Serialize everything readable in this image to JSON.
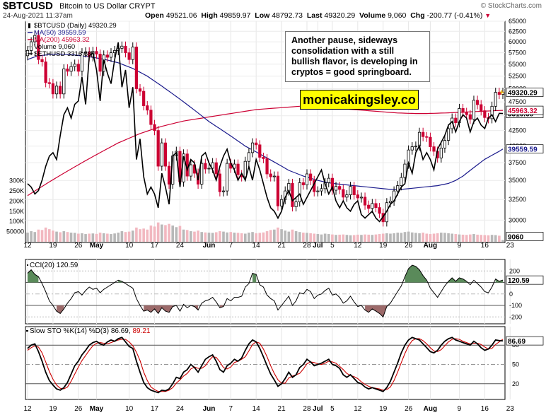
{
  "header": {
    "symbol": "$BTCUSD",
    "name": "Bitcoin to US Dollar",
    "exchange": "CRYPT",
    "date": "24-Aug-2021 11:37am",
    "open_label": "Open",
    "open": "49521.06",
    "high_label": "High",
    "high": "49859.97",
    "low_label": "Low",
    "low": "48792.73",
    "last_label": "Last",
    "last": "49320.29",
    "volume_label": "Volume",
    "volume": "9,060",
    "chg_label": "Chg",
    "chg": "-200.77 (-0.41%)",
    "chg_arrow": "▼",
    "source": "© StockCharts.com"
  },
  "annotation": "Another pause, sideways consolidation with a still bullish flavor, is developing in cryptos = good springboard.",
  "brand": "monicakingsley.co",
  "colors": {
    "up": "#000000",
    "down": "#cc0033",
    "ma50": "#1a1a8c",
    "ma200": "#cc0033",
    "eth": "#000000",
    "vol_up": "#b8b8b8",
    "vol_down": "#f2b8c0",
    "cci_pos": "#5a8a5a",
    "cci_neg": "#9c6a6a",
    "stoch_k": "#000000",
    "stoch_d": "#cc0000"
  },
  "chart_data": {
    "type": "candlestick",
    "title": "$BTCUSD (Daily) 49320.29",
    "legend": [
      {
        "label": "$BTCUSD (Daily) 49320.29",
        "swatch": "candle"
      },
      {
        "label": "MA(50) 39559.59",
        "color": "#1a1a8c"
      },
      {
        "label": "MA(200) 45963.32",
        "color": "#cc0033"
      },
      {
        "label": "Volume 9,060",
        "color": "#999999"
      },
      {
        "label": "$ETHUSD 3316.68",
        "color": "#000000"
      }
    ],
    "x_labels": [
      "12",
      "19",
      "26",
      "May",
      "10",
      "17",
      "24",
      "Jun",
      "7",
      "14",
      "21",
      "28",
      "Jul",
      "5",
      "12",
      "19",
      "26",
      "Aug",
      "9",
      "16",
      "23"
    ],
    "x_label_day_index": [
      0,
      7,
      14,
      19,
      28,
      35,
      42,
      50,
      56,
      63,
      70,
      77,
      80,
      84,
      91,
      98,
      105,
      111,
      119,
      126,
      133
    ],
    "bold_x_labels": [
      "May",
      "Jun",
      "Jul",
      "Aug"
    ],
    "price_axis": {
      "min": 27500,
      "max": 65000,
      "scale": "log",
      "ticks": [
        "65000",
        "62500",
        "60000",
        "57500",
        "55000",
        "52500",
        "50000",
        "47500",
        "45000",
        "42500",
        "40000",
        "37500",
        "35000",
        "32500",
        "30000"
      ],
      "tick_values": [
        65000,
        62500,
        60000,
        57500,
        55000,
        52500,
        50000,
        47500,
        45000,
        42500,
        40000,
        37500,
        35000,
        32500,
        30000
      ]
    },
    "btc_close": [
      58000,
      60000,
      61500,
      56000,
      55500,
      51200,
      51000,
      49000,
      50500,
      49000,
      54000,
      53500,
      54500,
      55000,
      53500,
      57500,
      57700,
      56600,
      57800,
      57200,
      53500,
      57000,
      56500,
      57500,
      58000,
      58500,
      59000,
      57500,
      56000,
      58800,
      50000,
      49500,
      46800,
      46000,
      43500,
      42500,
      37000,
      40500,
      37000,
      34500,
      38500,
      39200,
      34800,
      38800,
      35600,
      37200,
      36000,
      34500,
      37400,
      36600,
      36700,
      37500,
      35900,
      33500,
      33600,
      37400,
      36700,
      37300,
      35800,
      35500,
      37700,
      39000,
      40500,
      40200,
      38300,
      38100,
      35900,
      35500,
      35600,
      31700,
      32500,
      33600,
      34600,
      31600,
      32200,
      34700,
      34400,
      35900,
      35000,
      33500,
      33600,
      33900,
      34700,
      35300,
      33700,
      34200,
      33800,
      32800,
      33100,
      34200,
      33100,
      32700,
      32800,
      31800,
      31400,
      32000,
      31500,
      30800,
      29800,
      32100,
      32300,
      33600,
      34300,
      35400,
      37300,
      39400,
      39900,
      40000,
      42200,
      41500,
      41400,
      39900,
      39200,
      38200,
      39700,
      40900,
      42800,
      44600,
      43800,
      46300,
      45600,
      45200,
      44400,
      47800,
      47000,
      45900,
      44700,
      44500,
      46700,
      49300,
      48900,
      49300
    ],
    "btc_ohlc_note": "candles drawn from btc_close with open = previous close",
    "eth_usd": {
      "label": "$ETHUSD",
      "last": "3316.68",
      "min": 1600,
      "max": 4400,
      "values": [
        2300,
        2250,
        2150,
        2200,
        2350,
        2550,
        2700,
        2750,
        2650,
        3000,
        3300,
        3400,
        3250,
        3450,
        3500,
        3850,
        3450,
        4150,
        4200,
        3950,
        3500,
        4100,
        3900,
        3750,
        4100,
        4350,
        3700,
        3950,
        3400,
        3700,
        2650,
        2950,
        2400,
        2150,
        2250,
        2150,
        1950,
        2450,
        2250,
        2000,
        2700,
        2750,
        2250,
        2700,
        2500,
        2650,
        2600,
        2350,
        2700,
        2750,
        2600,
        2500,
        2350,
        2550,
        2700,
        2800,
        2600,
        2500,
        2350,
        2450,
        2350,
        2550,
        2350,
        2650,
        2500,
        2300,
        2100,
        1950,
        1900,
        1800,
        1900,
        2100,
        2200,
        2050,
        2100,
        2150,
        2000,
        2100,
        2200,
        2300,
        2400,
        2500,
        2300,
        2150,
        2250,
        2050,
        1950,
        2050,
        1950,
        1900,
        2000,
        2050,
        1850,
        1800,
        1850,
        1900,
        1800,
        1750,
        1820,
        1900,
        2000,
        2050,
        2150,
        2250,
        2300,
        2600,
        2450,
        2750,
        2850,
        2650,
        2750,
        2650,
        2500,
        2800,
        2900,
        3000,
        3150,
        3200,
        3050,
        3200,
        3300,
        3250,
        3050,
        3200,
        3250,
        3150,
        3100,
        3250,
        3300,
        3200,
        3320,
        3317
      ]
    },
    "ma50": {
      "label": "MA(50)",
      "last": "39559.59",
      "values": [
        56000,
        56300,
        56600,
        56800,
        56900,
        57000,
        57100,
        57150,
        57200,
        57200,
        57150,
        57100,
        57050,
        57000,
        56900,
        56800,
        56700,
        56600,
        56500,
        56350,
        56200,
        56050,
        55900,
        55700,
        55500,
        55300,
        55000,
        54700,
        54400,
        54100,
        53700,
        53300,
        52900,
        52500,
        52000,
        51500,
        51000,
        50500,
        50000,
        49500,
        49000,
        48500,
        48000,
        47500,
        47000,
        46500,
        46000,
        45500,
        45000,
        44500,
        44000,
        43600,
        43200,
        42800,
        42400,
        42000,
        41600,
        41200,
        40800,
        40400,
        40000,
        39700,
        39400,
        39100,
        38800,
        38500,
        38200,
        37900,
        37600,
        37300,
        37000,
        36700,
        36400,
        36200,
        36000,
        35800,
        35600,
        35450,
        35300,
        35150,
        35000,
        34900,
        34800,
        34700,
        34600,
        34550,
        34500,
        34450,
        34400,
        34350,
        34300,
        34250,
        34200,
        34150,
        34100,
        34050,
        34000,
        33950,
        33900,
        33850,
        33800,
        33800,
        33800,
        33800,
        33850,
        33900,
        33950,
        34000,
        34050,
        34100,
        34150,
        34200,
        34250,
        34300,
        34400,
        34500,
        34600,
        34800,
        35000,
        35300,
        35600,
        36000,
        36400,
        36800,
        37200,
        37600,
        38000,
        38300,
        38600,
        38900,
        39200,
        39560
      ]
    },
    "ma200": {
      "label": "MA(200)",
      "last": "45963.32",
      "values": [
        33000,
        33300,
        33600,
        33900,
        34200,
        34500,
        34800,
        35100,
        35400,
        35700,
        36000,
        36300,
        36600,
        36900,
        37200,
        37500,
        37800,
        38100,
        38400,
        38700,
        39000,
        39300,
        39600,
        39900,
        40200,
        40500,
        40750,
        41000,
        41250,
        41500,
        41750,
        42000,
        42200,
        42400,
        42600,
        42800,
        43000,
        43200,
        43350,
        43500,
        43650,
        43800,
        43950,
        44100,
        44200,
        44300,
        44400,
        44500,
        44600,
        44700,
        44800,
        44900,
        45000,
        45100,
        45200,
        45300,
        45400,
        45500,
        45600,
        45700,
        45800,
        45900,
        46000,
        46100,
        46150,
        46200,
        46250,
        46300,
        46350,
        46400,
        46450,
        46500,
        46550,
        46600,
        46650,
        46700,
        46700,
        46700,
        46700,
        46650,
        46600,
        46550,
        46500,
        46450,
        46400,
        46350,
        46300,
        46250,
        46200,
        46150,
        46100,
        46050,
        46000,
        45950,
        45900,
        45850,
        45800,
        45750,
        45700,
        45650,
        45600,
        45550,
        45500,
        45480,
        45460,
        45440,
        45420,
        45400,
        45400,
        45400,
        45400,
        45420,
        45440,
        45460,
        45480,
        45500,
        45520,
        45550,
        45580,
        45610,
        45640,
        45670,
        45700,
        45730,
        45760,
        45790,
        45820,
        45850,
        45880,
        45910,
        45940,
        45963
      ]
    },
    "volume": {
      "label": "Volume",
      "last": "9060",
      "axis_ticks": [
        "300K",
        "250K",
        "200K",
        "150K",
        "100K",
        "50000"
      ],
      "axis_values": [
        300000,
        250000,
        200000,
        150000,
        100000,
        50000
      ],
      "values": [
        45000,
        52000,
        48000,
        60000,
        58000,
        70000,
        62000,
        55000,
        50000,
        47000,
        52000,
        48000,
        45000,
        44000,
        40000,
        42000,
        38000,
        40000,
        41000,
        39000,
        45000,
        42000,
        40000,
        38000,
        41000,
        45000,
        52000,
        48000,
        50000,
        55000,
        70000,
        62000,
        65000,
        60000,
        80000,
        75000,
        95000,
        85000,
        82000,
        88000,
        80000,
        72000,
        78000,
        60000,
        58000,
        52000,
        50000,
        55000,
        48000,
        46000,
        45000,
        44000,
        47000,
        52000,
        50000,
        46000,
        48000,
        45000,
        44000,
        42000,
        40000,
        45000,
        48000,
        42000,
        44000,
        46000,
        52000,
        58000,
        60000,
        70000,
        62000,
        55000,
        50000,
        60000,
        52000,
        48000,
        45000,
        44000,
        42000,
        40000,
        38000,
        36000,
        40000,
        38000,
        36000,
        34000,
        35000,
        36000,
        34000,
        32000,
        33000,
        35000,
        34000,
        36000,
        35000,
        34000,
        36000,
        38000,
        40000,
        42000,
        40000,
        42000,
        45000,
        44000,
        48000,
        50000,
        46000,
        44000,
        42000,
        45000,
        40000,
        38000,
        40000,
        42000,
        45000,
        44000,
        42000,
        40000,
        38000,
        36000,
        35000,
        34000,
        36000,
        38000,
        35000,
        34000,
        33000,
        32000,
        34000,
        33000,
        30000,
        9060
      ],
      "down_days_note": "volume bars coloured by candle direction"
    }
  },
  "cci": {
    "label": "CCI(20)",
    "last": "120.59",
    "min": -260,
    "max": 300,
    "ticks": [
      "200",
      "100",
      "0",
      "-100",
      "-200"
    ],
    "tick_values": [
      200,
      100,
      0,
      -100,
      -200
    ],
    "values": [
      180,
      210,
      170,
      150,
      90,
      20,
      -60,
      -100,
      -150,
      -170,
      -130,
      -80,
      -40,
      10,
      20,
      -10,
      30,
      60,
      40,
      50,
      10,
      40,
      60,
      80,
      100,
      120,
      110,
      90,
      70,
      50,
      -40,
      -100,
      -150,
      -140,
      -160,
      -130,
      -170,
      -120,
      -150,
      -160,
      -110,
      -100,
      -150,
      -90,
      -120,
      -100,
      -110,
      -140,
      -80,
      -60,
      -50,
      -30,
      -70,
      -120,
      -110,
      -40,
      -60,
      -30,
      -30,
      -20,
      60,
      90,
      180,
      170,
      80,
      60,
      -10,
      -40,
      -60,
      -140,
      -100,
      -60,
      -20,
      -100,
      -60,
      10,
      0,
      40,
      20,
      -40,
      -10,
      0,
      30,
      50,
      -10,
      0,
      -30,
      -80,
      -60,
      -20,
      -70,
      -110,
      -100,
      -140,
      -160,
      -130,
      -150,
      -170,
      -200,
      -110,
      -80,
      -30,
      20,
      70,
      150,
      220,
      250,
      240,
      210,
      160,
      120,
      50,
      10,
      -30,
      20,
      70,
      110,
      140,
      110,
      140,
      130,
      110,
      80,
      120,
      90,
      60,
      20,
      10,
      60,
      130,
      110,
      121
    ]
  },
  "stoch": {
    "label": "Slow STO %K(14) %D(3)",
    "k_value": "86.69",
    "d_value": "89.21",
    "last": "86.69",
    "ticks": [
      "80",
      "50",
      "20"
    ],
    "tick_values": [
      80,
      50,
      20
    ],
    "k": [
      75,
      80,
      82,
      70,
      55,
      38,
      25,
      18,
      12,
      10,
      14,
      22,
      35,
      48,
      55,
      65,
      72,
      80,
      84,
      86,
      82,
      80,
      85,
      88,
      86,
      90,
      92,
      85,
      78,
      75,
      55,
      38,
      22,
      14,
      10,
      8,
      6,
      10,
      9,
      12,
      20,
      30,
      28,
      38,
      42,
      50,
      45,
      38,
      48,
      58,
      62,
      65,
      55,
      42,
      38,
      48,
      52,
      58,
      55,
      60,
      72,
      82,
      88,
      85,
      75,
      62,
      48,
      35,
      26,
      16,
      20,
      28,
      38,
      30,
      34,
      45,
      50,
      58,
      54,
      48,
      50,
      52,
      55,
      58,
      50,
      48,
      44,
      34,
      30,
      34,
      28,
      22,
      20,
      15,
      12,
      14,
      12,
      10,
      8,
      14,
      24,
      38,
      52,
      68,
      80,
      88,
      92,
      90,
      88,
      82,
      76,
      70,
      68,
      72,
      80,
      86,
      90,
      92,
      88,
      86,
      84,
      82,
      80,
      86,
      82,
      76,
      72,
      74,
      80,
      88,
      87,
      86.69
    ],
    "d": [
      72,
      76,
      79,
      77,
      68,
      54,
      39,
      27,
      18,
      13,
      12,
      15,
      24,
      35,
      46,
      56,
      64,
      72,
      79,
      83,
      84,
      83,
      82,
      84,
      86,
      88,
      89,
      89,
      85,
      79,
      69,
      56,
      38,
      25,
      15,
      11,
      8,
      8,
      8,
      10,
      14,
      21,
      26,
      32,
      36,
      43,
      46,
      44,
      44,
      48,
      56,
      62,
      61,
      54,
      45,
      43,
      46,
      53,
      55,
      58,
      62,
      71,
      81,
      85,
      83,
      74,
      62,
      48,
      36,
      26,
      21,
      21,
      29,
      32,
      34,
      36,
      43,
      51,
      54,
      53,
      51,
      50,
      52,
      55,
      54,
      52,
      47,
      42,
      36,
      33,
      31,
      28,
      23,
      19,
      16,
      14,
      13,
      12,
      10,
      11,
      15,
      25,
      38,
      53,
      67,
      79,
      87,
      90,
      90,
      87,
      82,
      76,
      71,
      70,
      73,
      79,
      85,
      89,
      90,
      89,
      86,
      84,
      82,
      83,
      83,
      81,
      77,
      74,
      75,
      81,
      85,
      89.21
    ]
  }
}
